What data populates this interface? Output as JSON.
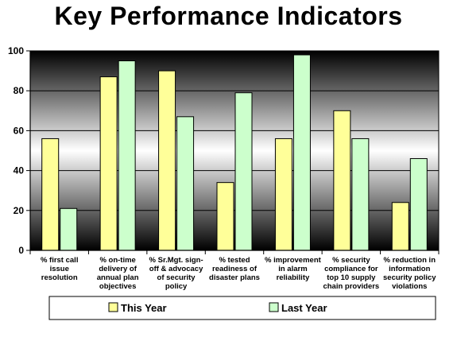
{
  "chart_data": {
    "type": "bar",
    "title": "Key Performance Indicators",
    "categories": [
      [
        "% first call",
        "issue",
        "resolution"
      ],
      [
        "% on-time",
        "delivery of",
        "annual plan",
        "objectives"
      ],
      [
        "% Sr.Mgt. sign-",
        "off & advocacy",
        "of security",
        "policy"
      ],
      [
        "% tested",
        "readiness of",
        "disaster plans"
      ],
      [
        "% improvement",
        "in alarm",
        "reliability"
      ],
      [
        "% security",
        "compliance for",
        "top 10 supply",
        "chain providers"
      ],
      [
        "% reduction in",
        "information",
        "security policy",
        "violations"
      ]
    ],
    "series": [
      {
        "name": "This Year",
        "values": [
          56,
          87,
          90,
          34,
          56,
          70,
          24
        ],
        "color": "#ffff99"
      },
      {
        "name": "Last Year",
        "values": [
          21,
          95,
          67,
          79,
          98,
          56,
          46
        ],
        "color": "#ccffcc"
      }
    ],
    "ylim": [
      0,
      100
    ],
    "yticks": [
      0,
      20,
      40,
      60,
      80,
      100
    ],
    "grid": true,
    "legend_position": "bottom"
  }
}
